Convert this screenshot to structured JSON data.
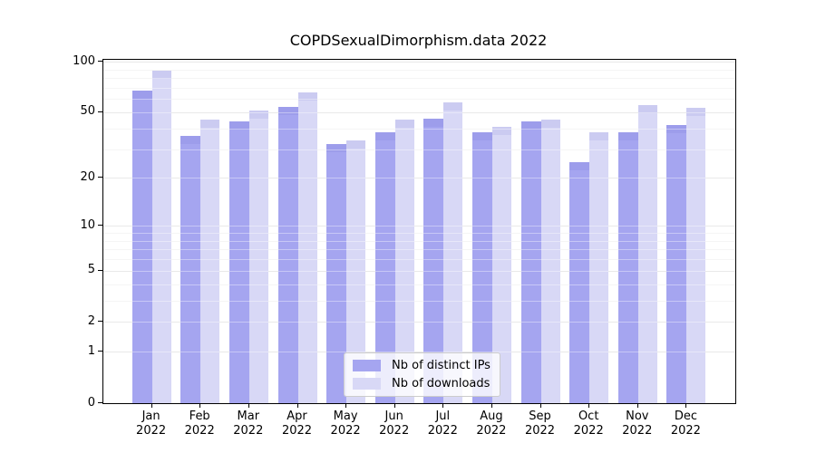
{
  "title": "COPDSexualDimorphism.data 2022",
  "colors": {
    "ips_bar": "#a5a5f0",
    "downloads_bar": "#d8d8f6",
    "grid_major": "#dbdbdb",
    "grid_minor": "#efefef",
    "axis": "#000000",
    "legend_border": "#cccccc"
  },
  "chart_data": {
    "type": "bar",
    "title": "COPDSexualDimorphism.data 2022",
    "scale": "log1p",
    "categories": [
      "Jan",
      "Feb",
      "Mar",
      "Apr",
      "May",
      "Jun",
      "Jul",
      "Aug",
      "Sep",
      "Oct",
      "Nov",
      "Dec"
    ],
    "year": "2022",
    "series": [
      {
        "name": "Nb of distinct IPs",
        "color": "#a5a5f0",
        "values": [
          67,
          36,
          44,
          54,
          32,
          38,
          46,
          38,
          44,
          25,
          38,
          42
        ]
      },
      {
        "name": "Nb of downloads",
        "color": "#d8d8f6",
        "values": [
          88,
          45,
          51,
          66,
          34,
          45,
          57,
          41,
          45,
          38,
          55,
          53
        ]
      }
    ],
    "xlabel": "",
    "ylabel": "",
    "y_ticks": [
      100,
      50,
      20,
      10,
      5,
      2,
      1,
      0
    ],
    "y_minor_gridlines": [
      90,
      80,
      70,
      60,
      40,
      30,
      9,
      8,
      7,
      6,
      4,
      3
    ],
    "ylim": [
      0,
      102.5
    ],
    "grid": true,
    "legend_position": "bottom-center"
  }
}
